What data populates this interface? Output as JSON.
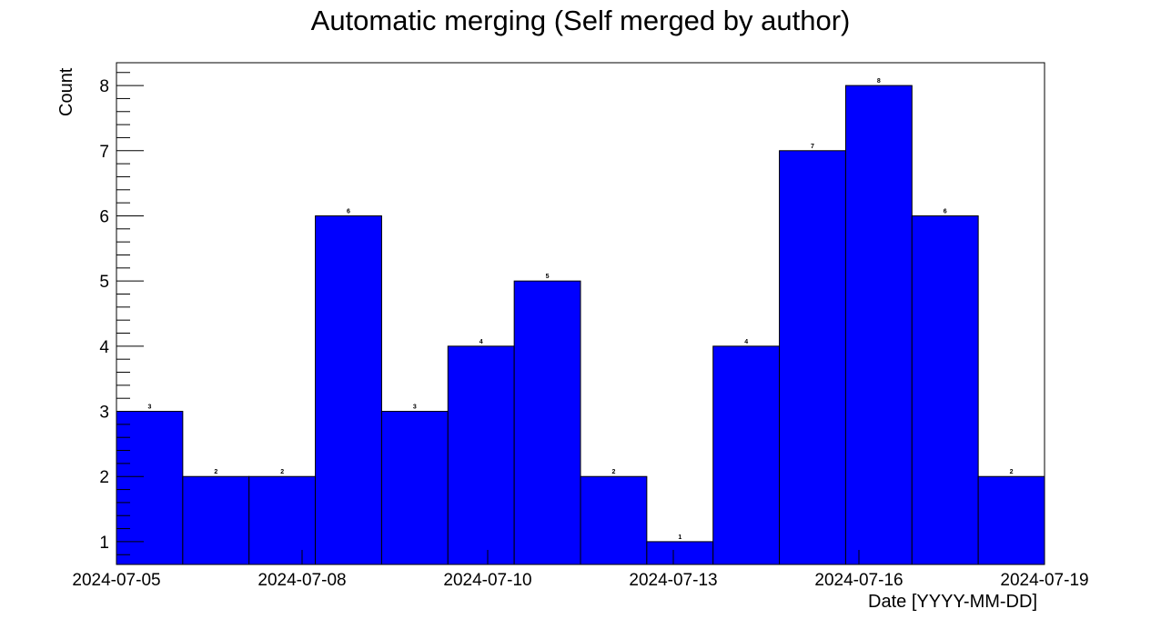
{
  "chart_data": {
    "type": "bar",
    "title": "Automatic merging (Self merged by author)",
    "xlabel": "Date [YYYY-MM-DD]",
    "ylabel": "Count",
    "categories": [
      "",
      "",
      "",
      "",
      "",
      "",
      "",
      "",
      "",
      "",
      "",
      "",
      "",
      ""
    ],
    "values": [
      3,
      2,
      2,
      6,
      3,
      4,
      5,
      2,
      1,
      4,
      7,
      8,
      6,
      2
    ],
    "x_tick_labels": [
      "2024-07-05",
      "2024-07-08",
      "2024-07-10",
      "2024-07-13",
      "2024-07-16",
      "2024-07-19"
    ],
    "y_tick_labels": [
      "1",
      "2",
      "3",
      "4",
      "5",
      "6",
      "7",
      "8"
    ],
    "ylim": [
      0.65,
      8.35
    ],
    "bar_color": "#0000ff",
    "grid": false
  }
}
